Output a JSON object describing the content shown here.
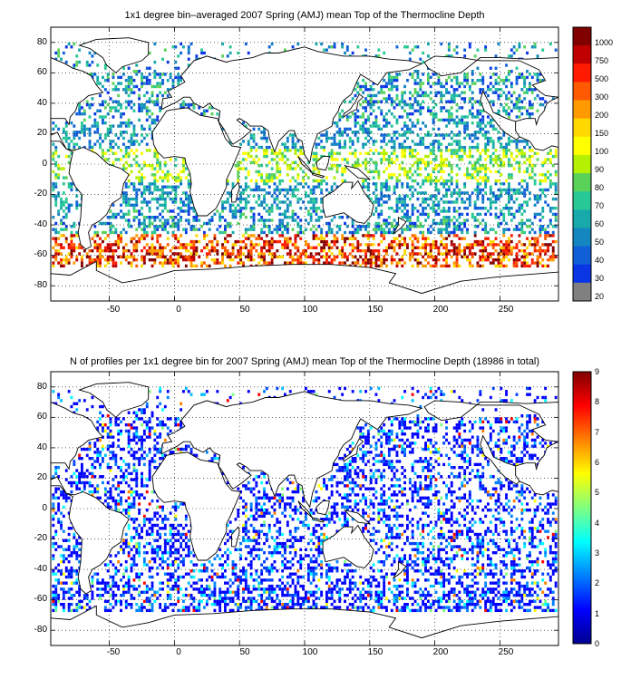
{
  "panels": [
    {
      "title": "1x1 degree bin–averaged 2007 Spring (AMJ) mean Top of the Thermocline Depth",
      "x_ticks": [
        "-50",
        "0",
        "50",
        "100",
        "150",
        "200",
        "250"
      ],
      "y_ticks": [
        "80",
        "60",
        "40",
        "20",
        "0",
        "-20",
        "-40",
        "-60",
        "-80"
      ],
      "colorbar_labels": [
        "1000",
        "750",
        "500",
        "300",
        "200",
        "150",
        "100",
        "90",
        "80",
        "70",
        "60",
        "50",
        "40",
        "30",
        "20"
      ],
      "colorbar_colors": [
        "#800000",
        "#c00000",
        "#ff1a00",
        "#ff5a00",
        "#ff9a00",
        "#ffd800",
        "#ffff00",
        "#b4f000",
        "#5ad25a",
        "#28c896",
        "#18aaaa",
        "#1486c0",
        "#1060d8",
        "#0a36e6",
        "#808080"
      ]
    },
    {
      "title": "N of profiles per 1x1 degree bin for 2007 Spring (AMJ) mean Top of the Thermocline Depth  (18986 in total)",
      "x_ticks": [
        "-50",
        "0",
        "50",
        "100",
        "150",
        "200",
        "250"
      ],
      "y_ticks": [
        "80",
        "60",
        "40",
        "20",
        "0",
        "-20",
        "-40",
        "-60",
        "-80"
      ],
      "colorbar_labels": [
        "9",
        "8",
        "7",
        "6",
        "5",
        "4",
        "3",
        "2",
        "1",
        "0"
      ]
    }
  ],
  "chart_data": {
    "type": "heatmap",
    "description_axes": {
      "x_range": [
        -95,
        295
      ],
      "y_range": [
        -90,
        90
      ],
      "grid": true,
      "grid_style": "dotted"
    },
    "maps": [
      {
        "variable": "Top of the Thermocline Depth",
        "colorbar_ticks": [
          1000,
          750,
          500,
          300,
          200,
          150,
          100,
          90,
          80,
          70,
          60,
          50,
          40,
          30,
          20
        ]
      },
      {
        "variable": "N of profiles",
        "total": 18986,
        "colorbar_range": [
          0,
          9
        ],
        "colorbar_ticks": [
          0,
          1,
          2,
          3,
          4,
          5,
          6,
          7,
          8,
          9
        ]
      }
    ]
  }
}
